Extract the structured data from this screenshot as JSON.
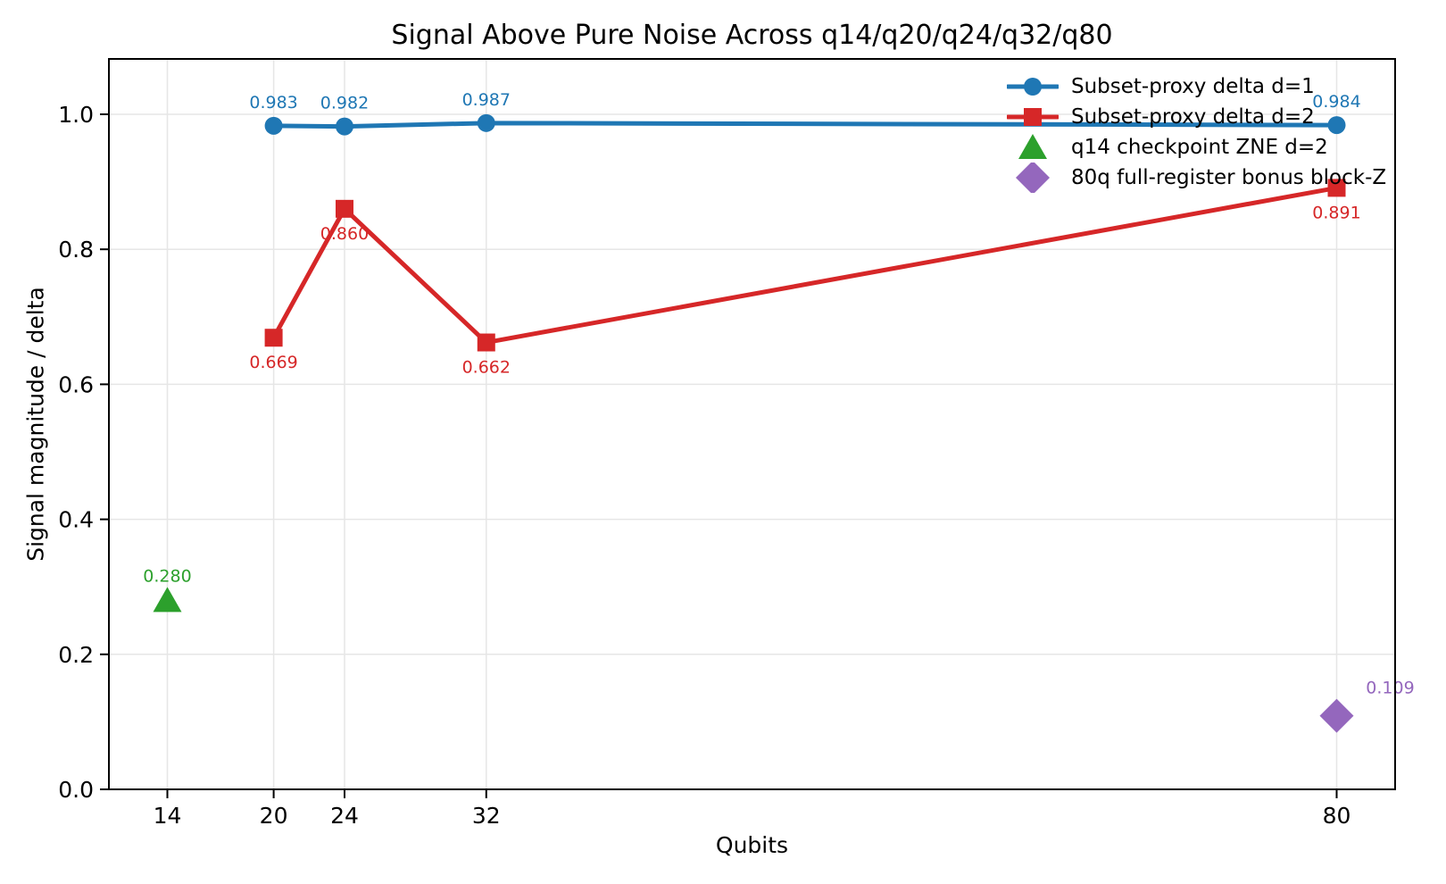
{
  "chart_data": {
    "type": "line",
    "title": "Signal Above Pure Noise Across q14/q20/q24/q32/q80",
    "xlabel": "Qubits",
    "ylabel": "Signal magnitude / delta",
    "xlim": [
      10.7,
      83.3
    ],
    "ylim": [
      0,
      1.082
    ],
    "x_ticks": [
      14,
      20,
      24,
      32,
      80
    ],
    "x_tick_labels": [
      "14",
      "20",
      "24",
      "32",
      "80"
    ],
    "y_ticks": [
      0.0,
      0.2,
      0.4,
      0.6,
      0.8,
      1.0
    ],
    "y_tick_labels": [
      "0.0",
      "0.2",
      "0.4",
      "0.6",
      "0.8",
      "1.0"
    ],
    "grid": true,
    "grid_color": "#e6e6e6",
    "axis_color": "#000000",
    "legend_position": "upper right",
    "legend_frame": false,
    "series": [
      {
        "name": "Subset-proxy delta d=1",
        "type": "line",
        "marker": "circle",
        "color": "#1f77b4",
        "x": [
          20,
          24,
          32,
          80
        ],
        "y": [
          0.983,
          0.982,
          0.987,
          0.984
        ],
        "point_labels": [
          "0.983",
          "0.982",
          "0.987",
          "0.984"
        ],
        "label_offset": [
          0,
          -27
        ]
      },
      {
        "name": "Subset-proxy delta d=2",
        "type": "line",
        "marker": "square",
        "color": "#d62728",
        "x": [
          20,
          24,
          32,
          80
        ],
        "y": [
          0.669,
          0.86,
          0.662,
          0.891
        ],
        "point_labels": [
          "0.669",
          "0.860",
          "0.662",
          "0.891"
        ],
        "label_offset": [
          0,
          27
        ]
      },
      {
        "name": "q14 checkpoint ZNE d=2",
        "type": "scatter",
        "marker": "triangle",
        "color": "#2ca02c",
        "x": [
          14
        ],
        "y": [
          0.28
        ],
        "point_labels": [
          "0.280"
        ],
        "label_offset": [
          0,
          -28
        ]
      },
      {
        "name": "80q full-register bonus block-Z",
        "type": "scatter",
        "marker": "diamond",
        "color": "#9467bd",
        "x": [
          80
        ],
        "y": [
          0.109
        ],
        "point_labels": [
          "0.109"
        ],
        "label_offset": [
          60,
          -32
        ]
      }
    ]
  }
}
